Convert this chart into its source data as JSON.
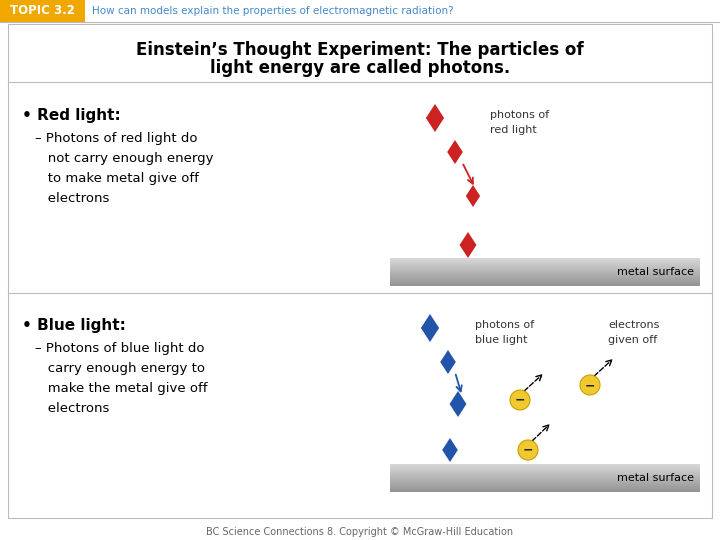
{
  "header_text_topic": "TOPIC 3.2",
  "header_text_question": "How can models explain the properties of electromagnetic radiation?",
  "title_line1": "Einstein’s Thought Experiment: The particles of",
  "title_line2": "light energy are called photons.",
  "bullet1_header": "• Red light:",
  "bullet1_sub": "– Photons of red light do\n   not carry enough energy\n   to make metal give off\n   electrons",
  "bullet2_header": "• Blue light:",
  "bullet2_sub": "– Photons of blue light do\n   carry enough energy to\n   make the metal give off\n   electrons",
  "footer_text": "BC Science Connections 8. Copyright © McGraw-Hill Education",
  "red_color": "#cc2222",
  "blue_color": "#2255aa",
  "yellow_color": "#f0c830",
  "topic_box_color": "#f0a800",
  "header_question_color": "#4488cc",
  "metal_top": "#d5d5d5",
  "metal_mid": "#b0b0b0",
  "metal_bot": "#909090"
}
